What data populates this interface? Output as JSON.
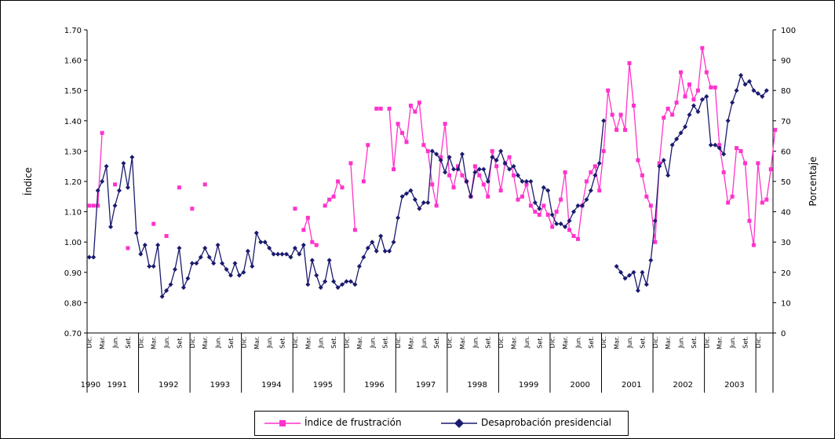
{
  "chart_data": {
    "type": "line",
    "title": "",
    "ylabel_left": "Índice",
    "ylabel_right": "Porcentaje",
    "ylim_left": [
      0.7,
      1.7
    ],
    "yticks_left": [
      "0.70",
      "0.80",
      "0.90",
      "1.00",
      "1.10",
      "1.20",
      "1.30",
      "1.40",
      "1.50",
      "1.60",
      "1.70"
    ],
    "ylim_right": [
      0,
      100
    ],
    "yticks_right": [
      "0",
      "10",
      "20",
      "30",
      "40",
      "50",
      "60",
      "70",
      "80",
      "90",
      "100"
    ],
    "x_range": [
      "1990-12",
      "2003-12"
    ],
    "year_labels": [
      "1990",
      "1991",
      "1992",
      "1993",
      "1994",
      "1995",
      "1996",
      "1997",
      "1998",
      "1999",
      "2000",
      "2001",
      "2002",
      "2003"
    ],
    "month_labels_1991": [
      "Dic.",
      "Mar.",
      "Jun.",
      "Set."
    ],
    "month_labels": [
      "Dic.",
      "Mar.",
      "Jun.",
      "Set."
    ],
    "grid": false,
    "legend_position": "bottom",
    "series": [
      {
        "name": "Índice de frustración",
        "axis": "left",
        "color": "#ff33cc",
        "marker": "square",
        "points": [
          [
            "1990-12",
            1.12
          ],
          [
            "1991-01",
            1.12
          ],
          [
            "1991-02",
            1.12
          ],
          [
            "1991-03",
            1.36
          ],
          [
            "1991-06",
            1.19
          ],
          [
            "1991-09",
            0.98
          ],
          [
            "1992-03",
            1.06
          ],
          [
            "1992-06",
            1.02
          ],
          [
            "1992-09",
            1.18
          ],
          [
            "1992-12",
            1.11
          ],
          [
            "1993-03",
            1.19
          ],
          [
            "1994-12",
            1.11
          ],
          [
            "1995-02",
            1.04
          ],
          [
            "1995-03",
            1.08
          ],
          [
            "1995-04",
            1.0
          ],
          [
            "1995-05",
            0.99
          ],
          [
            "1995-07",
            1.12
          ],
          [
            "1995-08",
            1.14
          ],
          [
            "1995-09",
            1.15
          ],
          [
            "1995-10",
            1.2
          ],
          [
            "1995-11",
            1.18
          ],
          [
            "1996-01",
            1.26
          ],
          [
            "1996-02",
            1.04
          ],
          [
            "1996-04",
            1.2
          ],
          [
            "1996-05",
            1.32
          ],
          [
            "1996-07",
            1.44
          ],
          [
            "1996-08",
            1.44
          ],
          [
            "1996-10",
            1.44
          ],
          [
            "1996-11",
            1.24
          ],
          [
            "1996-12",
            1.39
          ],
          [
            "1997-01",
            1.36
          ],
          [
            "1997-02",
            1.33
          ],
          [
            "1997-03",
            1.45
          ],
          [
            "1997-04",
            1.43
          ],
          [
            "1997-05",
            1.46
          ],
          [
            "1997-06",
            1.32
          ],
          [
            "1997-07",
            1.3
          ],
          [
            "1997-08",
            1.19
          ],
          [
            "1997-09",
            1.12
          ],
          [
            "1997-10",
            1.28
          ],
          [
            "1997-11",
            1.39
          ],
          [
            "1997-12",
            1.22
          ],
          [
            "1998-01",
            1.18
          ],
          [
            "1998-02",
            1.25
          ],
          [
            "1998-03",
            1.22
          ],
          [
            "1998-04",
            1.2
          ],
          [
            "1998-05",
            1.15
          ],
          [
            "1998-06",
            1.25
          ],
          [
            "1998-07",
            1.22
          ],
          [
            "1998-08",
            1.19
          ],
          [
            "1998-09",
            1.15
          ],
          [
            "1998-10",
            1.3
          ],
          [
            "1998-11",
            1.25
          ],
          [
            "1998-12",
            1.17
          ],
          [
            "1999-01",
            1.26
          ],
          [
            "1999-02",
            1.28
          ],
          [
            "1999-03",
            1.22
          ],
          [
            "1999-04",
            1.14
          ],
          [
            "1999-05",
            1.15
          ],
          [
            "1999-06",
            1.19
          ],
          [
            "1999-07",
            1.12
          ],
          [
            "1999-08",
            1.1
          ],
          [
            "1999-09",
            1.09
          ],
          [
            "1999-10",
            1.12
          ],
          [
            "1999-11",
            1.09
          ],
          [
            "1999-12",
            1.05
          ],
          [
            "2000-01",
            1.1
          ],
          [
            "2000-02",
            1.14
          ],
          [
            "2000-03",
            1.23
          ],
          [
            "2000-04",
            1.04
          ],
          [
            "2000-05",
            1.02
          ],
          [
            "2000-06",
            1.01
          ],
          [
            "2000-07",
            1.12
          ],
          [
            "2000-08",
            1.2
          ],
          [
            "2000-09",
            1.23
          ],
          [
            "2000-10",
            1.25
          ],
          [
            "2000-11",
            1.17
          ],
          [
            "2000-12",
            1.3
          ],
          [
            "2001-01",
            1.5
          ],
          [
            "2001-02",
            1.42
          ],
          [
            "2001-03",
            1.37
          ],
          [
            "2001-04",
            1.42
          ],
          [
            "2001-05",
            1.37
          ],
          [
            "2001-06",
            1.59
          ],
          [
            "2001-07",
            1.45
          ],
          [
            "2001-08",
            1.27
          ],
          [
            "2001-09",
            1.22
          ],
          [
            "2001-10",
            1.15
          ],
          [
            "2001-11",
            1.12
          ],
          [
            "2001-12",
            1.0
          ],
          [
            "2002-01",
            1.26
          ],
          [
            "2002-02",
            1.41
          ],
          [
            "2002-03",
            1.44
          ],
          [
            "2002-04",
            1.42
          ],
          [
            "2002-05",
            1.46
          ],
          [
            "2002-06",
            1.56
          ],
          [
            "2002-07",
            1.48
          ],
          [
            "2002-08",
            1.52
          ],
          [
            "2002-09",
            1.47
          ],
          [
            "2002-10",
            1.5
          ],
          [
            "2002-11",
            1.64
          ],
          [
            "2002-12",
            1.56
          ],
          [
            "2003-01",
            1.51
          ],
          [
            "2003-02",
            1.51
          ],
          [
            "2003-03",
            1.32
          ],
          [
            "2003-04",
            1.23
          ],
          [
            "2003-05",
            1.13
          ],
          [
            "2003-06",
            1.15
          ],
          [
            "2003-07",
            1.31
          ],
          [
            "2003-08",
            1.3
          ],
          [
            "2003-09",
            1.26
          ],
          [
            "2003-10",
            1.07
          ],
          [
            "2003-11",
            0.99
          ],
          [
            "2003-12",
            1.26
          ],
          [
            "2004-01",
            1.13
          ],
          [
            "2004-02",
            1.14
          ],
          [
            "2004-03",
            1.24
          ],
          [
            "2004-04",
            1.37
          ]
        ]
      },
      {
        "name": "Desaprobación presidencial",
        "axis": "right",
        "color": "#1a1a6e",
        "marker": "diamond",
        "points": [
          [
            "1990-12",
            25
          ],
          [
            "1991-01",
            25
          ],
          [
            "1991-02",
            47
          ],
          [
            "1991-03",
            50
          ],
          [
            "1991-04",
            55
          ],
          [
            "1991-05",
            35
          ],
          [
            "1991-06",
            42
          ],
          [
            "1991-07",
            47
          ],
          [
            "1991-08",
            56
          ],
          [
            "1991-09",
            48
          ],
          [
            "1991-10",
            58
          ],
          [
            "1991-11",
            33
          ],
          [
            "1991-12",
            26
          ],
          [
            "1992-01",
            29
          ],
          [
            "1992-02",
            22
          ],
          [
            "1992-03",
            22
          ],
          [
            "1992-04",
            29
          ],
          [
            "1992-05",
            12
          ],
          [
            "1992-06",
            14
          ],
          [
            "1992-07",
            16
          ],
          [
            "1992-08",
            21
          ],
          [
            "1992-09",
            28
          ],
          [
            "1992-10",
            15
          ],
          [
            "1992-11",
            18
          ],
          [
            "1992-12",
            23
          ],
          [
            "1993-01",
            23
          ],
          [
            "1993-02",
            25
          ],
          [
            "1993-03",
            28
          ],
          [
            "1993-04",
            25
          ],
          [
            "1993-05",
            23
          ],
          [
            "1993-06",
            29
          ],
          [
            "1993-07",
            23
          ],
          [
            "1993-08",
            21
          ],
          [
            "1993-09",
            19
          ],
          [
            "1993-10",
            23
          ],
          [
            "1993-11",
            19
          ],
          [
            "1993-12",
            20
          ],
          [
            "1994-01",
            27
          ],
          [
            "1994-02",
            22
          ],
          [
            "1994-03",
            33
          ],
          [
            "1994-04",
            30
          ],
          [
            "1994-05",
            30
          ],
          [
            "1994-06",
            28
          ],
          [
            "1994-07",
            26
          ],
          [
            "1994-08",
            26
          ],
          [
            "1994-09",
            26
          ],
          [
            "1994-10",
            26
          ],
          [
            "1994-11",
            25
          ],
          [
            "1994-12",
            28
          ],
          [
            "1995-01",
            26
          ],
          [
            "1995-02",
            29
          ],
          [
            "1995-03",
            16
          ],
          [
            "1995-04",
            24
          ],
          [
            "1995-05",
            19
          ],
          [
            "1995-06",
            15
          ],
          [
            "1995-07",
            17
          ],
          [
            "1995-08",
            24
          ],
          [
            "1995-09",
            17
          ],
          [
            "1995-10",
            15
          ],
          [
            "1995-11",
            16
          ],
          [
            "1995-12",
            17
          ],
          [
            "1996-01",
            17
          ],
          [
            "1996-02",
            16
          ],
          [
            "1996-03",
            22
          ],
          [
            "1996-04",
            25
          ],
          [
            "1996-05",
            28
          ],
          [
            "1996-06",
            30
          ],
          [
            "1996-07",
            27
          ],
          [
            "1996-08",
            32
          ],
          [
            "1996-09",
            27
          ],
          [
            "1996-10",
            27
          ],
          [
            "1996-11",
            30
          ],
          [
            "1996-12",
            38
          ],
          [
            "1997-01",
            45
          ],
          [
            "1997-02",
            46
          ],
          [
            "1997-03",
            47
          ],
          [
            "1997-04",
            44
          ],
          [
            "1997-05",
            41
          ],
          [
            "1997-06",
            43
          ],
          [
            "1997-07",
            43
          ],
          [
            "1997-08",
            60
          ],
          [
            "1997-09",
            59
          ],
          [
            "1997-10",
            57
          ],
          [
            "1997-11",
            53
          ],
          [
            "1997-12",
            58
          ],
          [
            "1998-01",
            54
          ],
          [
            "1998-02",
            54
          ],
          [
            "1998-03",
            59
          ],
          [
            "1998-04",
            50
          ],
          [
            "1998-05",
            45
          ],
          [
            "1998-06",
            53
          ],
          [
            "1998-07",
            54
          ],
          [
            "1998-08",
            54
          ],
          [
            "1998-09",
            50
          ],
          [
            "1998-10",
            58
          ],
          [
            "1998-11",
            57
          ],
          [
            "1998-12",
            60
          ],
          [
            "1999-01",
            56
          ],
          [
            "1999-02",
            54
          ],
          [
            "1999-03",
            55
          ],
          [
            "1999-04",
            52
          ],
          [
            "1999-05",
            50
          ],
          [
            "1999-06",
            50
          ],
          [
            "1999-07",
            50
          ],
          [
            "1999-08",
            43
          ],
          [
            "1999-09",
            41
          ],
          [
            "1999-10",
            48
          ],
          [
            "1999-11",
            47
          ],
          [
            "1999-12",
            39
          ],
          [
            "2000-01",
            36
          ],
          [
            "2000-02",
            36
          ],
          [
            "2000-03",
            35
          ],
          [
            "2000-04",
            37
          ],
          [
            "2000-05",
            40
          ],
          [
            "2000-06",
            42
          ],
          [
            "2000-07",
            42
          ],
          [
            "2000-08",
            44
          ],
          [
            "2000-09",
            47
          ],
          [
            "2000-10",
            52
          ],
          [
            "2000-11",
            56
          ],
          [
            "2000-12",
            70
          ],
          [
            "2001-03",
            22
          ],
          [
            "2001-04",
            20
          ],
          [
            "2001-05",
            18
          ],
          [
            "2001-06",
            19
          ],
          [
            "2001-07",
            20
          ],
          [
            "2001-08",
            14
          ],
          [
            "2001-09",
            20
          ],
          [
            "2001-10",
            16
          ],
          [
            "2001-11",
            24
          ],
          [
            "2001-12",
            37
          ],
          [
            "2002-01",
            55
          ],
          [
            "2002-02",
            57
          ],
          [
            "2002-03",
            52
          ],
          [
            "2002-04",
            62
          ],
          [
            "2002-05",
            64
          ],
          [
            "2002-06",
            66
          ],
          [
            "2002-07",
            68
          ],
          [
            "2002-08",
            72
          ],
          [
            "2002-09",
            75
          ],
          [
            "2002-10",
            73
          ],
          [
            "2002-11",
            77
          ],
          [
            "2002-12",
            78
          ],
          [
            "2003-01",
            62
          ],
          [
            "2003-02",
            62
          ],
          [
            "2003-03",
            61
          ],
          [
            "2003-04",
            59
          ],
          [
            "2003-05",
            70
          ],
          [
            "2003-06",
            76
          ],
          [
            "2003-07",
            80
          ],
          [
            "2003-08",
            85
          ],
          [
            "2003-09",
            82
          ],
          [
            "2003-10",
            83
          ],
          [
            "2003-11",
            80
          ],
          [
            "2003-12",
            79
          ],
          [
            "2004-01",
            78
          ],
          [
            "2004-02",
            80
          ]
        ]
      }
    ]
  }
}
